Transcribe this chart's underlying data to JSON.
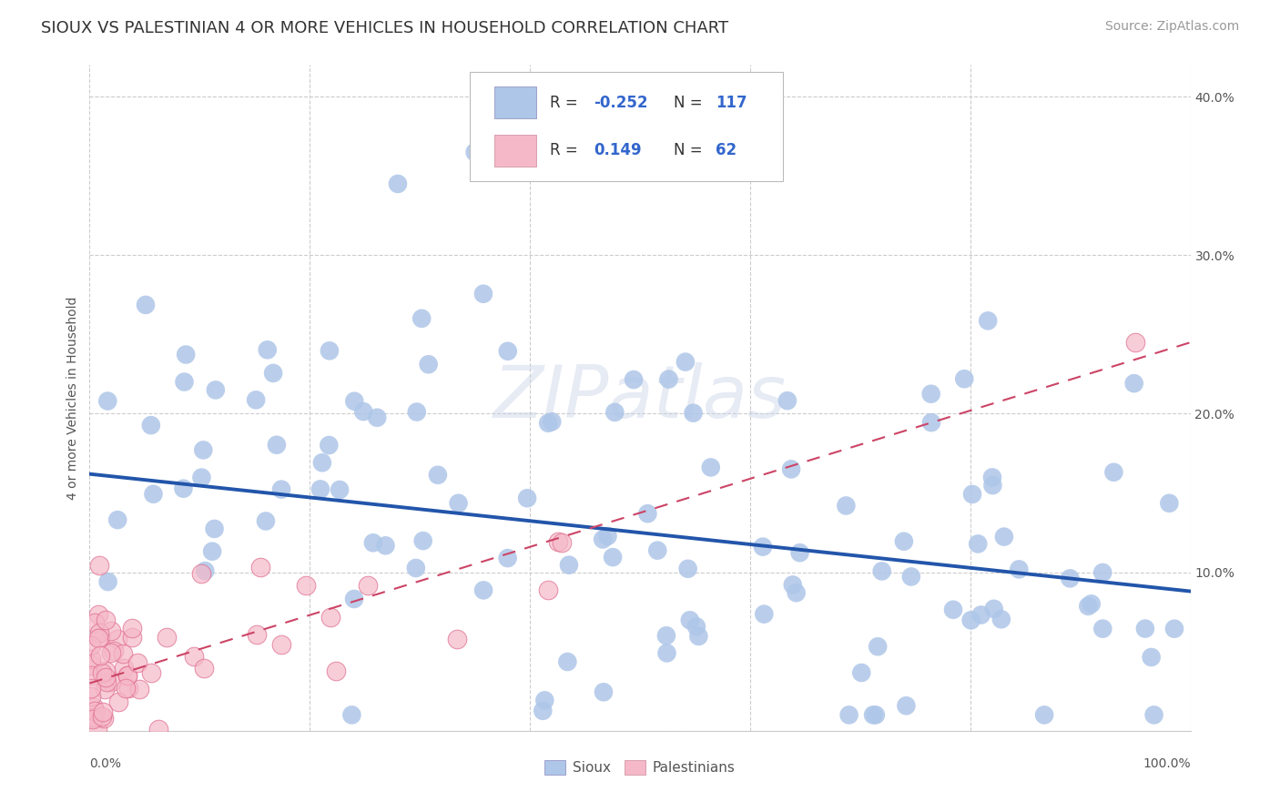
{
  "title": "SIOUX VS PALESTINIAN 4 OR MORE VEHICLES IN HOUSEHOLD CORRELATION CHART",
  "source": "Source: ZipAtlas.com",
  "ylabel": "4 or more Vehicles in Household",
  "sioux_R": -0.252,
  "sioux_N": 117,
  "palestinian_R": 0.149,
  "palestinian_N": 62,
  "sioux_color": "#aec6e8",
  "sioux_edge": "none",
  "sioux_line_color": "#2255aa",
  "palestinian_color": "#f5b8c8",
  "palestinian_edge": "#e07090",
  "palestinian_line_color": "#cc4466",
  "watermark": "ZIPatlas",
  "background_color": "#ffffff",
  "grid_color": "#cccccc",
  "legend_R_color": "#3366cc",
  "ylim": [
    0.0,
    0.42
  ],
  "xlim": [
    0.0,
    1.0
  ],
  "yticks": [
    0.0,
    0.1,
    0.2,
    0.3,
    0.4
  ],
  "ytick_labels": [
    "",
    "10.0%",
    "20.0%",
    "30.0%",
    "40.0%"
  ],
  "title_fontsize": 13,
  "axis_label_fontsize": 10,
  "source_fontsize": 10,
  "sioux_line_start_y": 0.162,
  "sioux_line_end_y": 0.088,
  "pal_line_start_y": 0.03,
  "pal_line_end_y": 0.245
}
